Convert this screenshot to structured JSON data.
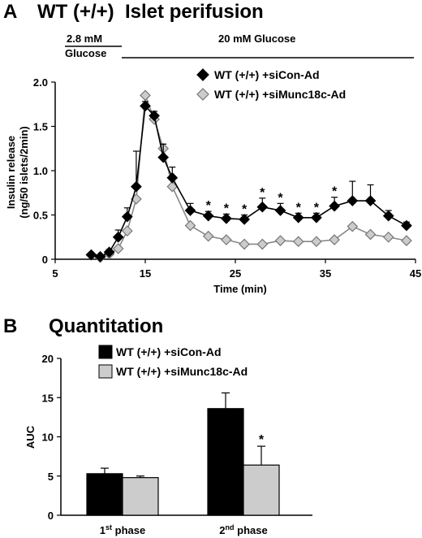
{
  "panelA": {
    "letter": "A",
    "title": "WT (+/+)  Islet perifusion",
    "conditions": [
      {
        "line1": "2.8 mM",
        "line2": "Glucose"
      },
      {
        "line1": "20 mM Glucose",
        "line2": ""
      }
    ],
    "chart_data": {
      "type": "line",
      "xlabel": "Time (min)",
      "ylabel_line1": "Insulin release",
      "ylabel_line2": "(ng/50 islets/2min)",
      "xlim": [
        5,
        45
      ],
      "ylim": [
        0,
        2.0
      ],
      "xticks": [
        5,
        15,
        25,
        35,
        45
      ],
      "yticks": [
        0,
        0.5,
        1.0,
        1.5,
        2.0
      ],
      "ytick_labels": [
        "0",
        "0.5",
        "1.0",
        "1.5",
        "2.0"
      ],
      "legend_position": "top-right",
      "x": [
        9,
        10,
        11,
        12,
        13,
        14,
        15,
        16,
        17,
        18,
        20,
        22,
        24,
        26,
        28,
        30,
        32,
        34,
        36,
        38,
        40,
        42,
        44
      ],
      "series": [
        {
          "name": "WT (+/+) +siCon-Ad",
          "marker": "filled-diamond",
          "color": "#000000",
          "values": [
            0.05,
            0.03,
            0.08,
            0.25,
            0.48,
            0.82,
            1.73,
            1.62,
            1.15,
            0.92,
            0.55,
            0.49,
            0.46,
            0.45,
            0.59,
            0.55,
            0.47,
            0.47,
            0.6,
            0.66,
            0.66,
            0.49,
            0.38
          ],
          "errors": [
            0.02,
            0.02,
            0.03,
            0.08,
            0.1,
            0.4,
            0.05,
            0.05,
            0.15,
            0.12,
            0.08,
            0.05,
            0.05,
            0.05,
            0.1,
            0.08,
            0.05,
            0.05,
            0.1,
            0.22,
            0.18,
            0.06,
            0.04
          ]
        },
        {
          "name": "WT (+/+) +siMunc18c-Ad",
          "marker": "open-diamond",
          "color": "#cccccc",
          "values": [
            0.05,
            0.02,
            0.06,
            0.12,
            0.32,
            0.68,
            1.85,
            1.58,
            1.25,
            0.82,
            0.38,
            0.26,
            0.22,
            0.17,
            0.17,
            0.21,
            0.2,
            0.2,
            0.22,
            0.37,
            0.28,
            0.25,
            0.21
          ]
        }
      ],
      "significance": [
        {
          "x": 22,
          "label": "*"
        },
        {
          "x": 24,
          "label": "*"
        },
        {
          "x": 26,
          "label": "*"
        },
        {
          "x": 28,
          "label": "*"
        },
        {
          "x": 30,
          "label": "*"
        },
        {
          "x": 32,
          "label": "*"
        },
        {
          "x": 34,
          "label": "*"
        },
        {
          "x": 36,
          "label": "*"
        }
      ]
    }
  },
  "panelB": {
    "letter": "B",
    "title": "Quantitation",
    "chart_data": {
      "type": "bar",
      "ylabel": "AUC",
      "ylim": [
        0,
        20
      ],
      "yticks": [
        0,
        5,
        10,
        15,
        20
      ],
      "legend_position": "top-left",
      "categories": [
        {
          "base": "1",
          "sup": "st",
          "rest": " phase"
        },
        {
          "base": "2",
          "sup": "nd",
          "rest": " phase"
        }
      ],
      "series": [
        {
          "name": "WT (+/+) +siCon-Ad",
          "color": "#000000",
          "values": [
            5.3,
            13.6
          ],
          "errors": [
            0.7,
            2.0
          ]
        },
        {
          "name": "WT (+/+) +siMunc18c-Ad",
          "color": "#cccccc",
          "values": [
            4.8,
            6.4
          ],
          "errors": [
            0.2,
            2.4
          ]
        }
      ],
      "significance": [
        {
          "category": 1,
          "series": 1,
          "label": "*"
        }
      ]
    }
  }
}
